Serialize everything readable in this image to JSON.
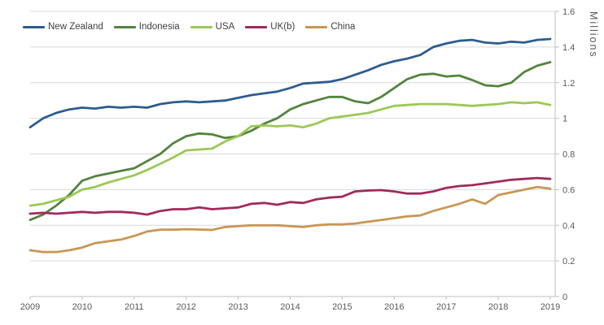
{
  "chart_data": {
    "type": "line",
    "title": "",
    "ylabel": "Millions",
    "xlabel": "",
    "grid": "horizontal",
    "legend_position": "top-left",
    "xlim": [
      2009,
      2019
    ],
    "ylim": [
      0,
      1.6
    ],
    "x_ticks": [
      "2009",
      "2010",
      "2011",
      "2012",
      "2013",
      "2014",
      "2015",
      "2016",
      "2017",
      "2018",
      "2019"
    ],
    "y_ticks": [
      "0",
      "0.2",
      "0.4",
      "0.6",
      "0.8",
      "1",
      "1.2",
      "1.4",
      "1.6"
    ],
    "x": [
      2009,
      2009.25,
      2009.5,
      2009.75,
      2010,
      2010.25,
      2010.5,
      2010.75,
      2011,
      2011.25,
      2011.5,
      2011.75,
      2012,
      2012.25,
      2012.5,
      2012.75,
      2013,
      2013.25,
      2013.5,
      2013.75,
      2014,
      2014.25,
      2014.5,
      2014.75,
      2015,
      2015.25,
      2015.5,
      2015.75,
      2016,
      2016.25,
      2016.5,
      2016.75,
      2017,
      2017.25,
      2017.5,
      2017.75,
      2018,
      2018.25,
      2018.5,
      2018.75,
      2019
    ],
    "series": [
      {
        "name": "New Zealand",
        "color": "#2E5C8E",
        "values": [
          0.95,
          1.0,
          1.03,
          1.05,
          1.06,
          1.055,
          1.065,
          1.06,
          1.065,
          1.06,
          1.08,
          1.09,
          1.095,
          1.09,
          1.095,
          1.1,
          1.115,
          1.13,
          1.14,
          1.15,
          1.17,
          1.195,
          1.2,
          1.205,
          1.22,
          1.245,
          1.27,
          1.3,
          1.32,
          1.335,
          1.355,
          1.4,
          1.42,
          1.435,
          1.44,
          1.425,
          1.42,
          1.43,
          1.425,
          1.44,
          1.445
        ]
      },
      {
        "name": "Indonesia",
        "color": "#53833F",
        "values": [
          0.43,
          0.46,
          0.51,
          0.57,
          0.65,
          0.675,
          0.69,
          0.705,
          0.72,
          0.76,
          0.8,
          0.86,
          0.9,
          0.915,
          0.91,
          0.89,
          0.9,
          0.93,
          0.97,
          1.0,
          1.05,
          1.08,
          1.1,
          1.12,
          1.12,
          1.095,
          1.085,
          1.12,
          1.17,
          1.22,
          1.245,
          1.25,
          1.235,
          1.24,
          1.215,
          1.185,
          1.18,
          1.2,
          1.26,
          1.295,
          1.315
        ]
      },
      {
        "name": "USA",
        "color": "#9BC857",
        "values": [
          0.51,
          0.52,
          0.54,
          0.56,
          0.6,
          0.615,
          0.64,
          0.66,
          0.68,
          0.71,
          0.745,
          0.78,
          0.82,
          0.825,
          0.83,
          0.87,
          0.9,
          0.955,
          0.96,
          0.955,
          0.96,
          0.95,
          0.97,
          1.0,
          1.01,
          1.02,
          1.03,
          1.05,
          1.07,
          1.075,
          1.08,
          1.08,
          1.08,
          1.075,
          1.07,
          1.075,
          1.08,
          1.09,
          1.085,
          1.09,
          1.075
        ]
      },
      {
        "name": "UK(b)",
        "color": "#A02A5B",
        "values": [
          0.465,
          0.47,
          0.465,
          0.47,
          0.475,
          0.47,
          0.475,
          0.475,
          0.47,
          0.46,
          0.48,
          0.49,
          0.49,
          0.5,
          0.49,
          0.495,
          0.5,
          0.52,
          0.525,
          0.515,
          0.53,
          0.525,
          0.545,
          0.555,
          0.56,
          0.59,
          0.595,
          0.597,
          0.59,
          0.578,
          0.578,
          0.59,
          0.61,
          0.62,
          0.625,
          0.635,
          0.645,
          0.655,
          0.66,
          0.665,
          0.66
        ]
      },
      {
        "name": "China",
        "color": "#C89754",
        "values": [
          0.26,
          0.25,
          0.25,
          0.26,
          0.275,
          0.3,
          0.31,
          0.32,
          0.34,
          0.365,
          0.375,
          0.375,
          0.378,
          0.376,
          0.374,
          0.39,
          0.395,
          0.4,
          0.4,
          0.4,
          0.395,
          0.39,
          0.4,
          0.405,
          0.405,
          0.41,
          0.42,
          0.43,
          0.44,
          0.45,
          0.455,
          0.48,
          0.5,
          0.52,
          0.545,
          0.52,
          0.57,
          0.585,
          0.6,
          0.615,
          0.605
        ]
      }
    ]
  },
  "style": {
    "grid_color": "#D9D9D9",
    "axis_color": "#BFBFBF",
    "tick_text_color": "#595959",
    "legend_text_color": "#404040",
    "background": "#FFFFFF"
  }
}
